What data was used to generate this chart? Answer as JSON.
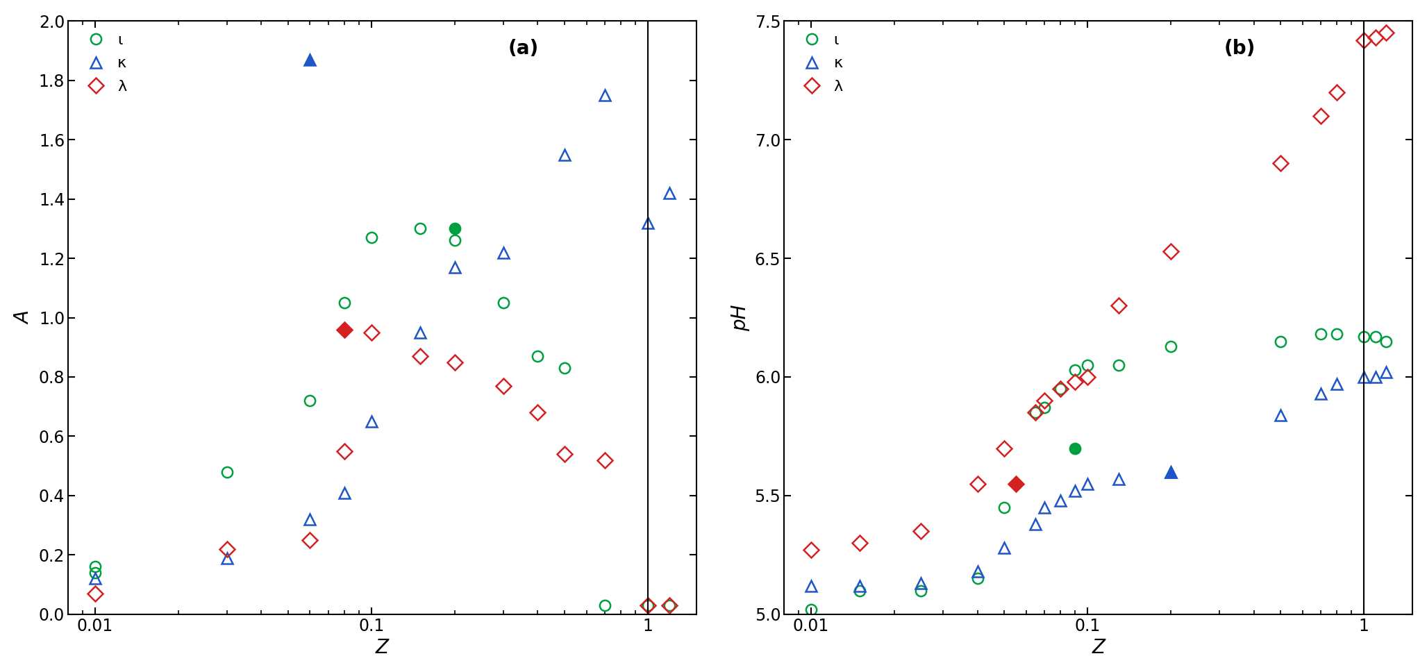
{
  "panel_a": {
    "iota_open": {
      "x": [
        0.01,
        0.01,
        0.03,
        0.06,
        0.08,
        0.1,
        0.15,
        0.2,
        0.3,
        0.4,
        0.5,
        0.7,
        1.0,
        1.2
      ],
      "y": [
        0.14,
        0.16,
        0.48,
        0.72,
        1.05,
        1.27,
        1.3,
        1.26,
        1.05,
        0.87,
        0.83,
        0.03,
        0.03,
        0.03
      ],
      "color": "#00a040",
      "marker": "o"
    },
    "iota_filled": {
      "x": [
        0.2
      ],
      "y": [
        1.3
      ],
      "color": "#00a040",
      "marker": "o"
    },
    "kappa_open": {
      "x": [
        0.01,
        0.03,
        0.06,
        0.08,
        0.1,
        0.15,
        0.2,
        0.3,
        0.5,
        0.7,
        1.0,
        1.2
      ],
      "y": [
        0.12,
        0.19,
        0.32,
        0.41,
        0.65,
        0.95,
        1.17,
        1.22,
        1.55,
        1.75,
        1.32,
        1.42
      ],
      "color": "#1e56c8",
      "marker": "^"
    },
    "kappa_filled": {
      "x": [
        0.06
      ],
      "y": [
        1.87
      ],
      "color": "#1e56c8",
      "marker": "^"
    },
    "lambda_open": {
      "x": [
        0.01,
        0.03,
        0.06,
        0.08,
        0.1,
        0.15,
        0.2,
        0.3,
        0.4,
        0.5,
        0.7,
        1.0,
        1.2
      ],
      "y": [
        0.07,
        0.22,
        0.25,
        0.55,
        0.95,
        0.87,
        0.85,
        0.77,
        0.68,
        0.54,
        0.52,
        0.03,
        0.03
      ],
      "color": "#d42020",
      "marker": "D"
    },
    "lambda_filled": {
      "x": [
        0.08
      ],
      "y": [
        0.96
      ],
      "color": "#d42020",
      "marker": "D"
    },
    "ylabel": "A",
    "xlabel": "Z",
    "ylim": [
      0,
      2.0
    ],
    "yticks": [
      0,
      0.2,
      0.4,
      0.6,
      0.8,
      1.0,
      1.2,
      1.4,
      1.6,
      1.8,
      2.0
    ],
    "label": "(a)"
  },
  "panel_b": {
    "iota_open": {
      "x": [
        0.01,
        0.015,
        0.025,
        0.04,
        0.05,
        0.065,
        0.07,
        0.08,
        0.09,
        0.1,
        0.13,
        0.2,
        0.5,
        0.7,
        0.8,
        1.0,
        1.1,
        1.2
      ],
      "y": [
        5.02,
        5.1,
        5.1,
        5.15,
        5.45,
        5.85,
        5.87,
        5.95,
        6.03,
        6.05,
        6.05,
        6.13,
        6.15,
        6.18,
        6.18,
        6.17,
        6.17,
        6.15
      ],
      "color": "#00a040",
      "marker": "o"
    },
    "iota_filled": {
      "x": [
        0.09
      ],
      "y": [
        5.7
      ],
      "color": "#00a040",
      "marker": "o"
    },
    "kappa_open": {
      "x": [
        0.01,
        0.015,
        0.025,
        0.04,
        0.05,
        0.065,
        0.07,
        0.08,
        0.09,
        0.1,
        0.13,
        0.2,
        0.5,
        0.7,
        0.8,
        1.0,
        1.1,
        1.2
      ],
      "y": [
        5.12,
        5.12,
        5.13,
        5.18,
        5.28,
        5.38,
        5.45,
        5.48,
        5.52,
        5.55,
        5.57,
        5.6,
        5.84,
        5.93,
        5.97,
        6.0,
        6.0,
        6.02
      ],
      "color": "#1e56c8",
      "marker": "^"
    },
    "kappa_filled": {
      "x": [
        0.2
      ],
      "y": [
        5.6
      ],
      "color": "#1e56c8",
      "marker": "^"
    },
    "lambda_open": {
      "x": [
        0.01,
        0.015,
        0.025,
        0.04,
        0.05,
        0.065,
        0.07,
        0.08,
        0.09,
        0.1,
        0.13,
        0.2,
        0.5,
        0.7,
        0.8,
        1.0,
        1.1,
        1.2
      ],
      "y": [
        5.27,
        5.3,
        5.35,
        5.55,
        5.7,
        5.85,
        5.9,
        5.95,
        5.98,
        6.0,
        6.3,
        6.53,
        6.9,
        7.1,
        7.2,
        7.42,
        7.43,
        7.45
      ],
      "color": "#d42020",
      "marker": "D"
    },
    "lambda_filled": {
      "x": [
        0.055
      ],
      "y": [
        5.55
      ],
      "color": "#d42020",
      "marker": "D"
    },
    "ylabel": "pH",
    "xlabel": "Z",
    "ylim": [
      5.0,
      7.5
    ],
    "yticks": [
      5.0,
      5.5,
      6.0,
      6.5,
      7.0,
      7.5
    ],
    "label": "(b)"
  },
  "legend_labels": [
    "ι",
    "κ",
    "λ"
  ],
  "iota_color": "#00a040",
  "kappa_color": "#1e56c8",
  "lambda_color": "#d42020",
  "marker_size": 11,
  "xlim": [
    0.008,
    1.5
  ],
  "vline_x": 1.0,
  "xticks": [
    0.01,
    0.1,
    1.0
  ]
}
